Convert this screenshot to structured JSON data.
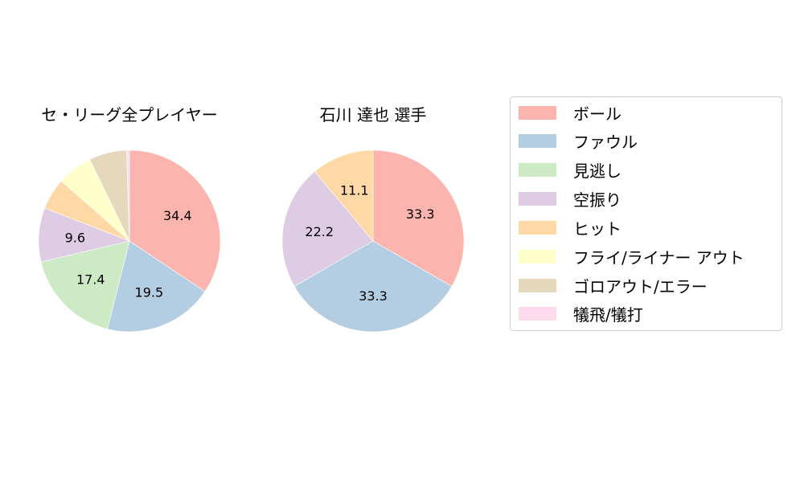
{
  "chart_data": [
    {
      "type": "pie",
      "title": "セ・リーグ全プレイヤー",
      "categories": [
        "ボール",
        "ファウル",
        "見逃し",
        "空振り",
        "ヒット",
        "フライ/ライナー アウト",
        "ゴロアウト/エラー",
        "犠飛/犠打"
      ],
      "values": [
        34.4,
        19.5,
        17.4,
        9.6,
        5.6,
        6.3,
        6.7,
        0.5
      ],
      "labels_shown": [
        "34.4",
        "19.5",
        "17.4",
        "9.6",
        "",
        "",
        "",
        ""
      ],
      "start_angle": 90,
      "direction": "clockwise"
    },
    {
      "type": "pie",
      "title": "石川 達也  選手",
      "categories": [
        "ボール",
        "ファウル",
        "見逃し",
        "空振り",
        "ヒット",
        "フライ/ライナー アウト",
        "ゴロアウト/エラー",
        "犠飛/犠打"
      ],
      "values": [
        33.3,
        33.3,
        0,
        22.2,
        11.1,
        0,
        0,
        0
      ],
      "labels_shown": [
        "33.3",
        "33.3",
        "",
        "22.2",
        "11.1",
        "",
        "",
        ""
      ],
      "start_angle": 90,
      "direction": "clockwise"
    }
  ],
  "legend": {
    "position": "right",
    "items": [
      {
        "label": "ボール",
        "color": "#fbb4ae"
      },
      {
        "label": "ファウル",
        "color": "#b3cde3"
      },
      {
        "label": "見逃し",
        "color": "#ccebc5"
      },
      {
        "label": "空振り",
        "color": "#decbe4"
      },
      {
        "label": "ヒット",
        "color": "#fed9a6"
      },
      {
        "label": "フライ/ライナー アウト",
        "color": "#ffffcc"
      },
      {
        "label": "ゴロアウト/エラー",
        "color": "#e5d8bd"
      },
      {
        "label": "犠飛/犠打",
        "color": "#fddaec"
      }
    ]
  }
}
